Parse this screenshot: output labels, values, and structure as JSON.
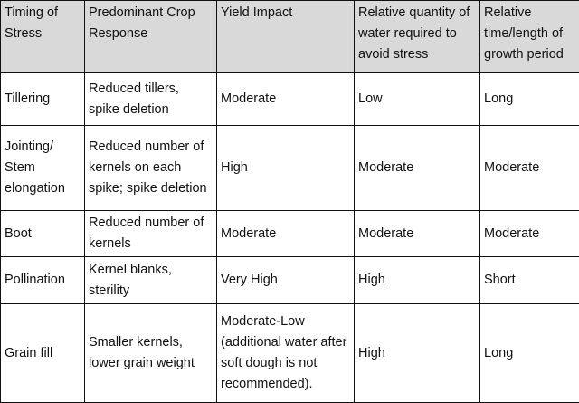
{
  "table": {
    "header": [
      "Timing of Stress",
      "Predominant Crop Response",
      "Yield Impact",
      "Relative quantity of water required to avoid stress",
      "Relative time/length of growth period"
    ],
    "rows": [
      [
        "Tillering",
        "Reduced tillers, spike deletion",
        "Moderate",
        "Low",
        "Long"
      ],
      [
        "Jointing/ Stem elongation",
        "Reduced number of kernels on each spike; spike deletion",
        "High",
        "Moderate",
        "Moderate"
      ],
      [
        "Boot",
        "Reduced number of kernels",
        "Moderate",
        "Moderate",
        "Moderate"
      ],
      [
        "Pollination",
        "Kernel blanks, sterility",
        "Very High",
        "High",
        "Short"
      ],
      [
        "Grain fill",
        "Smaller kernels, lower grain weight",
        "Moderate-Low (additional water after soft dough is not recommended).",
        "High",
        "Long"
      ]
    ]
  }
}
